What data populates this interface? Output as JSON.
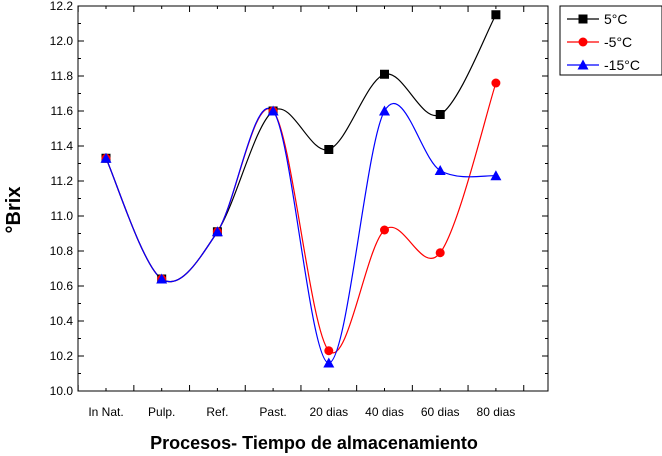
{
  "chart_data": {
    "type": "line",
    "xlabel": "Procesos- Tiempo de almacenamiento",
    "ylabel": "°Brix",
    "categories": [
      "In Nat.",
      "Pulp.",
      "Ref.",
      "Past.",
      "20 dias",
      "40 dias",
      "60 dias",
      "80 dias"
    ],
    "ylim": [
      10.0,
      12.2
    ],
    "yticks": [
      "10.0",
      "10.2",
      "10.4",
      "10.6",
      "10.8",
      "11.0",
      "11.2",
      "11.4",
      "11.6",
      "11.8",
      "12.0",
      "12.2"
    ],
    "grid": false,
    "legend_position": "top-right",
    "series": [
      {
        "name": "5°C",
        "color": "#000000",
        "marker": "square",
        "values": [
          11.33,
          10.64,
          10.91,
          11.6,
          11.38,
          11.81,
          11.58,
          12.15
        ]
      },
      {
        "name": "-5°C",
        "color": "#ff0000",
        "marker": "circle",
        "values": [
          11.33,
          10.64,
          10.91,
          11.6,
          10.23,
          10.92,
          10.79,
          11.76
        ]
      },
      {
        "name": "-15°C",
        "color": "#0000ff",
        "marker": "triangle",
        "values": [
          11.33,
          10.64,
          10.91,
          11.6,
          10.16,
          11.6,
          11.26,
          11.23
        ]
      }
    ]
  }
}
